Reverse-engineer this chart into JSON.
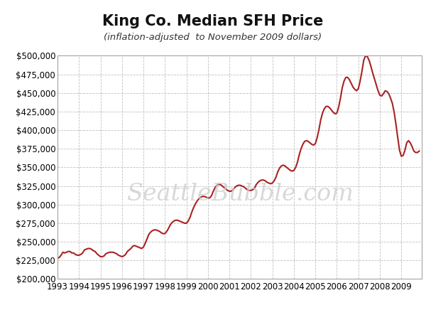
{
  "title": "King Co. Median SFH Price",
  "subtitle": "(inflation-adjusted  to November 2009 dollars)",
  "watermark": "SeattleBubble.com",
  "line_color": "#aa2222",
  "background_color": "#ffffff",
  "ylim": [
    200000,
    500000
  ],
  "yticks": [
    200000,
    225000,
    250000,
    275000,
    300000,
    325000,
    350000,
    375000,
    400000,
    425000,
    450000,
    475000,
    500000
  ],
  "x_labels": [
    "1993",
    "1994",
    "1995",
    "1996",
    "1997",
    "1998",
    "1999",
    "2000",
    "2001",
    "2002",
    "2003",
    "2004",
    "2005",
    "2006",
    "2007",
    "2008",
    "2009"
  ],
  "data": [
    [
      1993.0,
      228000
    ],
    [
      1993.083,
      229000
    ],
    [
      1993.167,
      232000
    ],
    [
      1993.25,
      236000
    ],
    [
      1993.333,
      235000
    ],
    [
      1993.417,
      236000
    ],
    [
      1993.5,
      237000
    ],
    [
      1993.583,
      237000
    ],
    [
      1993.667,
      235000
    ],
    [
      1993.75,
      235000
    ],
    [
      1993.833,
      233000
    ],
    [
      1993.917,
      232000
    ],
    [
      1994.0,
      232000
    ],
    [
      1994.083,
      233000
    ],
    [
      1994.167,
      235000
    ],
    [
      1994.25,
      239000
    ],
    [
      1994.333,
      240000
    ],
    [
      1994.417,
      241000
    ],
    [
      1994.5,
      241000
    ],
    [
      1994.583,
      240000
    ],
    [
      1994.667,
      238000
    ],
    [
      1994.75,
      237000
    ],
    [
      1994.833,
      234000
    ],
    [
      1994.917,
      232000
    ],
    [
      1995.0,
      230000
    ],
    [
      1995.083,
      230000
    ],
    [
      1995.167,
      231000
    ],
    [
      1995.25,
      234000
    ],
    [
      1995.333,
      235000
    ],
    [
      1995.417,
      236000
    ],
    [
      1995.5,
      236000
    ],
    [
      1995.583,
      236000
    ],
    [
      1995.667,
      235000
    ],
    [
      1995.75,
      234000
    ],
    [
      1995.833,
      232000
    ],
    [
      1995.917,
      231000
    ],
    [
      1996.0,
      230000
    ],
    [
      1996.083,
      231000
    ],
    [
      1996.167,
      233000
    ],
    [
      1996.25,
      237000
    ],
    [
      1996.333,
      239000
    ],
    [
      1996.417,
      241000
    ],
    [
      1996.5,
      244000
    ],
    [
      1996.583,
      245000
    ],
    [
      1996.667,
      244000
    ],
    [
      1996.75,
      243000
    ],
    [
      1996.833,
      242000
    ],
    [
      1996.917,
      241000
    ],
    [
      1997.0,
      243000
    ],
    [
      1997.083,
      248000
    ],
    [
      1997.167,
      254000
    ],
    [
      1997.25,
      260000
    ],
    [
      1997.333,
      263000
    ],
    [
      1997.417,
      265000
    ],
    [
      1997.5,
      266000
    ],
    [
      1997.583,
      266000
    ],
    [
      1997.667,
      265000
    ],
    [
      1997.75,
      264000
    ],
    [
      1997.833,
      262000
    ],
    [
      1997.917,
      261000
    ],
    [
      1998.0,
      261000
    ],
    [
      1998.083,
      264000
    ],
    [
      1998.167,
      268000
    ],
    [
      1998.25,
      273000
    ],
    [
      1998.333,
      276000
    ],
    [
      1998.417,
      278000
    ],
    [
      1998.5,
      279000
    ],
    [
      1998.583,
      279000
    ],
    [
      1998.667,
      278000
    ],
    [
      1998.75,
      277000
    ],
    [
      1998.833,
      276000
    ],
    [
      1998.917,
      275000
    ],
    [
      1999.0,
      275000
    ],
    [
      1999.083,
      278000
    ],
    [
      1999.167,
      283000
    ],
    [
      1999.25,
      290000
    ],
    [
      1999.333,
      296000
    ],
    [
      1999.417,
      301000
    ],
    [
      1999.5,
      305000
    ],
    [
      1999.583,
      308000
    ],
    [
      1999.667,
      310000
    ],
    [
      1999.75,
      311000
    ],
    [
      1999.833,
      311000
    ],
    [
      1999.917,
      310000
    ],
    [
      2000.0,
      309000
    ],
    [
      2000.083,
      309000
    ],
    [
      2000.167,
      312000
    ],
    [
      2000.25,
      318000
    ],
    [
      2000.333,
      323000
    ],
    [
      2000.417,
      326000
    ],
    [
      2000.5,
      327000
    ],
    [
      2000.583,
      327000
    ],
    [
      2000.667,
      325000
    ],
    [
      2000.75,
      323000
    ],
    [
      2000.833,
      321000
    ],
    [
      2000.917,
      319000
    ],
    [
      2001.0,
      318000
    ],
    [
      2001.083,
      318000
    ],
    [
      2001.167,
      320000
    ],
    [
      2001.25,
      323000
    ],
    [
      2001.333,
      325000
    ],
    [
      2001.417,
      326000
    ],
    [
      2001.5,
      326000
    ],
    [
      2001.583,
      325000
    ],
    [
      2001.667,
      324000
    ],
    [
      2001.75,
      322000
    ],
    [
      2001.833,
      320000
    ],
    [
      2001.917,
      319000
    ],
    [
      2002.0,
      319000
    ],
    [
      2002.083,
      320000
    ],
    [
      2002.167,
      322000
    ],
    [
      2002.25,
      327000
    ],
    [
      2002.333,
      330000
    ],
    [
      2002.417,
      332000
    ],
    [
      2002.5,
      333000
    ],
    [
      2002.583,
      333000
    ],
    [
      2002.667,
      332000
    ],
    [
      2002.75,
      330000
    ],
    [
      2002.833,
      329000
    ],
    [
      2002.917,
      328000
    ],
    [
      2003.0,
      329000
    ],
    [
      2003.083,
      332000
    ],
    [
      2003.167,
      337000
    ],
    [
      2003.25,
      344000
    ],
    [
      2003.333,
      349000
    ],
    [
      2003.417,
      352000
    ],
    [
      2003.5,
      353000
    ],
    [
      2003.583,
      352000
    ],
    [
      2003.667,
      350000
    ],
    [
      2003.75,
      348000
    ],
    [
      2003.833,
      346000
    ],
    [
      2003.917,
      345000
    ],
    [
      2004.0,
      346000
    ],
    [
      2004.083,
      350000
    ],
    [
      2004.167,
      357000
    ],
    [
      2004.25,
      367000
    ],
    [
      2004.333,
      375000
    ],
    [
      2004.417,
      381000
    ],
    [
      2004.5,
      385000
    ],
    [
      2004.583,
      386000
    ],
    [
      2004.667,
      385000
    ],
    [
      2004.75,
      383000
    ],
    [
      2004.833,
      381000
    ],
    [
      2004.917,
      380000
    ],
    [
      2005.0,
      382000
    ],
    [
      2005.083,
      390000
    ],
    [
      2005.167,
      401000
    ],
    [
      2005.25,
      414000
    ],
    [
      2005.333,
      423000
    ],
    [
      2005.417,
      429000
    ],
    [
      2005.5,
      432000
    ],
    [
      2005.583,
      432000
    ],
    [
      2005.667,
      430000
    ],
    [
      2005.75,
      427000
    ],
    [
      2005.833,
      424000
    ],
    [
      2005.917,
      422000
    ],
    [
      2006.0,
      423000
    ],
    [
      2006.083,
      431000
    ],
    [
      2006.167,
      443000
    ],
    [
      2006.25,
      457000
    ],
    [
      2006.333,
      466000
    ],
    [
      2006.417,
      471000
    ],
    [
      2006.5,
      471000
    ],
    [
      2006.583,
      468000
    ],
    [
      2006.667,
      463000
    ],
    [
      2006.75,
      458000
    ],
    [
      2006.833,
      455000
    ],
    [
      2006.917,
      453000
    ],
    [
      2007.0,
      456000
    ],
    [
      2007.083,
      466000
    ],
    [
      2007.167,
      479000
    ],
    [
      2007.25,
      494000
    ],
    [
      2007.333,
      500000
    ],
    [
      2007.417,
      499000
    ],
    [
      2007.5,
      494000
    ],
    [
      2007.583,
      486000
    ],
    [
      2007.667,
      477000
    ],
    [
      2007.75,
      469000
    ],
    [
      2007.833,
      461000
    ],
    [
      2007.917,
      453000
    ],
    [
      2008.0,
      447000
    ],
    [
      2008.083,
      446000
    ],
    [
      2008.167,
      449000
    ],
    [
      2008.25,
      453000
    ],
    [
      2008.333,
      452000
    ],
    [
      2008.417,
      449000
    ],
    [
      2008.5,
      443000
    ],
    [
      2008.583,
      436000
    ],
    [
      2008.667,
      424000
    ],
    [
      2008.75,
      408000
    ],
    [
      2008.833,
      390000
    ],
    [
      2008.917,
      373000
    ],
    [
      2009.0,
      365000
    ],
    [
      2009.083,
      366000
    ],
    [
      2009.167,
      373000
    ],
    [
      2009.25,
      383000
    ],
    [
      2009.333,
      386000
    ],
    [
      2009.417,
      383000
    ],
    [
      2009.5,
      378000
    ],
    [
      2009.583,
      372000
    ],
    [
      2009.667,
      370000
    ],
    [
      2009.75,
      370000
    ],
    [
      2009.833,
      372000
    ]
  ]
}
